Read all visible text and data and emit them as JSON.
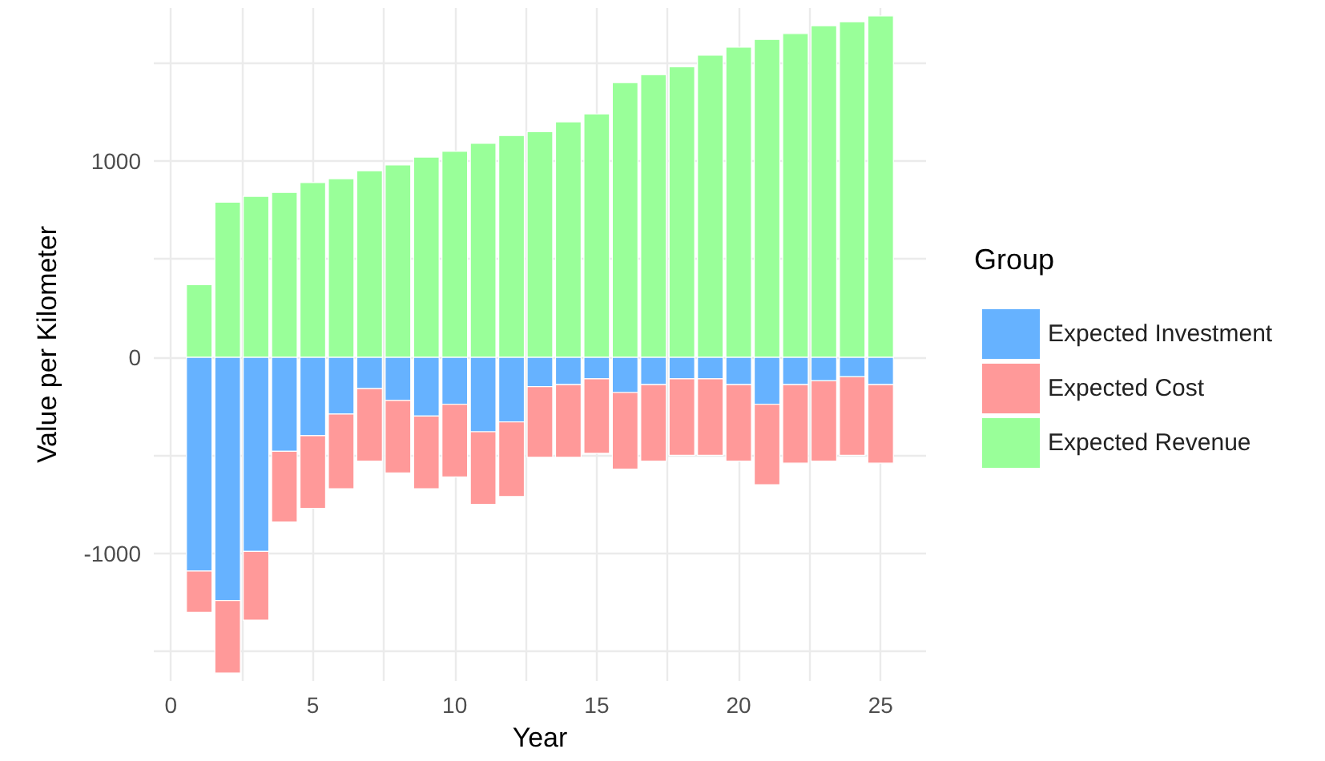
{
  "chart_data": {
    "type": "bar",
    "stacked": true,
    "xlabel": "Year",
    "ylabel": "Value per Kilometer",
    "legend_title": "Group",
    "legend": "right",
    "x": [
      1,
      2,
      3,
      4,
      5,
      6,
      7,
      8,
      9,
      10,
      11,
      12,
      13,
      14,
      15,
      16,
      17,
      18,
      19,
      20,
      21,
      22,
      23,
      24,
      25
    ],
    "series": [
      {
        "name": "Expected Investment",
        "color": "#66b2ff",
        "values": [
          -1090,
          -1240,
          -990,
          -480,
          -400,
          -290,
          -160,
          -220,
          -300,
          -240,
          -380,
          -330,
          -150,
          -140,
          -110,
          -180,
          -140,
          -110,
          -110,
          -140,
          -240,
          -140,
          -120,
          -100,
          -140
        ]
      },
      {
        "name": "Expected Cost",
        "color": "#ff9999",
        "values": [
          -210,
          -370,
          -350,
          -360,
          -370,
          -380,
          -370,
          -370,
          -370,
          -370,
          -370,
          -380,
          -360,
          -370,
          -380,
          -390,
          -390,
          -390,
          -390,
          -390,
          -410,
          -400,
          -410,
          -400,
          -400
        ]
      },
      {
        "name": "Expected Revenue",
        "color": "#99ff99",
        "values": [
          370,
          790,
          820,
          840,
          890,
          910,
          950,
          980,
          1020,
          1050,
          1090,
          1130,
          1150,
          1200,
          1240,
          1400,
          1440,
          1480,
          1540,
          1580,
          1620,
          1650,
          1690,
          1710,
          1740
        ]
      }
    ],
    "xlim": [
      -0.6,
      26.6
    ],
    "xticks": [
      0,
      {
        "value": 2.5,
        "label": null
      },
      5,
      {
        "value": 7.5,
        "label": null
      },
      10,
      {
        "value": 12.5,
        "label": null
      },
      15,
      {
        "value": 17.5,
        "label": null
      },
      20,
      {
        "value": 22.5,
        "label": null
      },
      25
    ],
    "ylim": [
      -1650,
      1780
    ],
    "yticks": [
      {
        "value": -1500,
        "label": null
      },
      -1000,
      {
        "value": -500,
        "label": null
      },
      0,
      {
        "value": 500,
        "label": null
      },
      1000,
      {
        "value": 1500,
        "label": null
      }
    ],
    "grid": true
  }
}
